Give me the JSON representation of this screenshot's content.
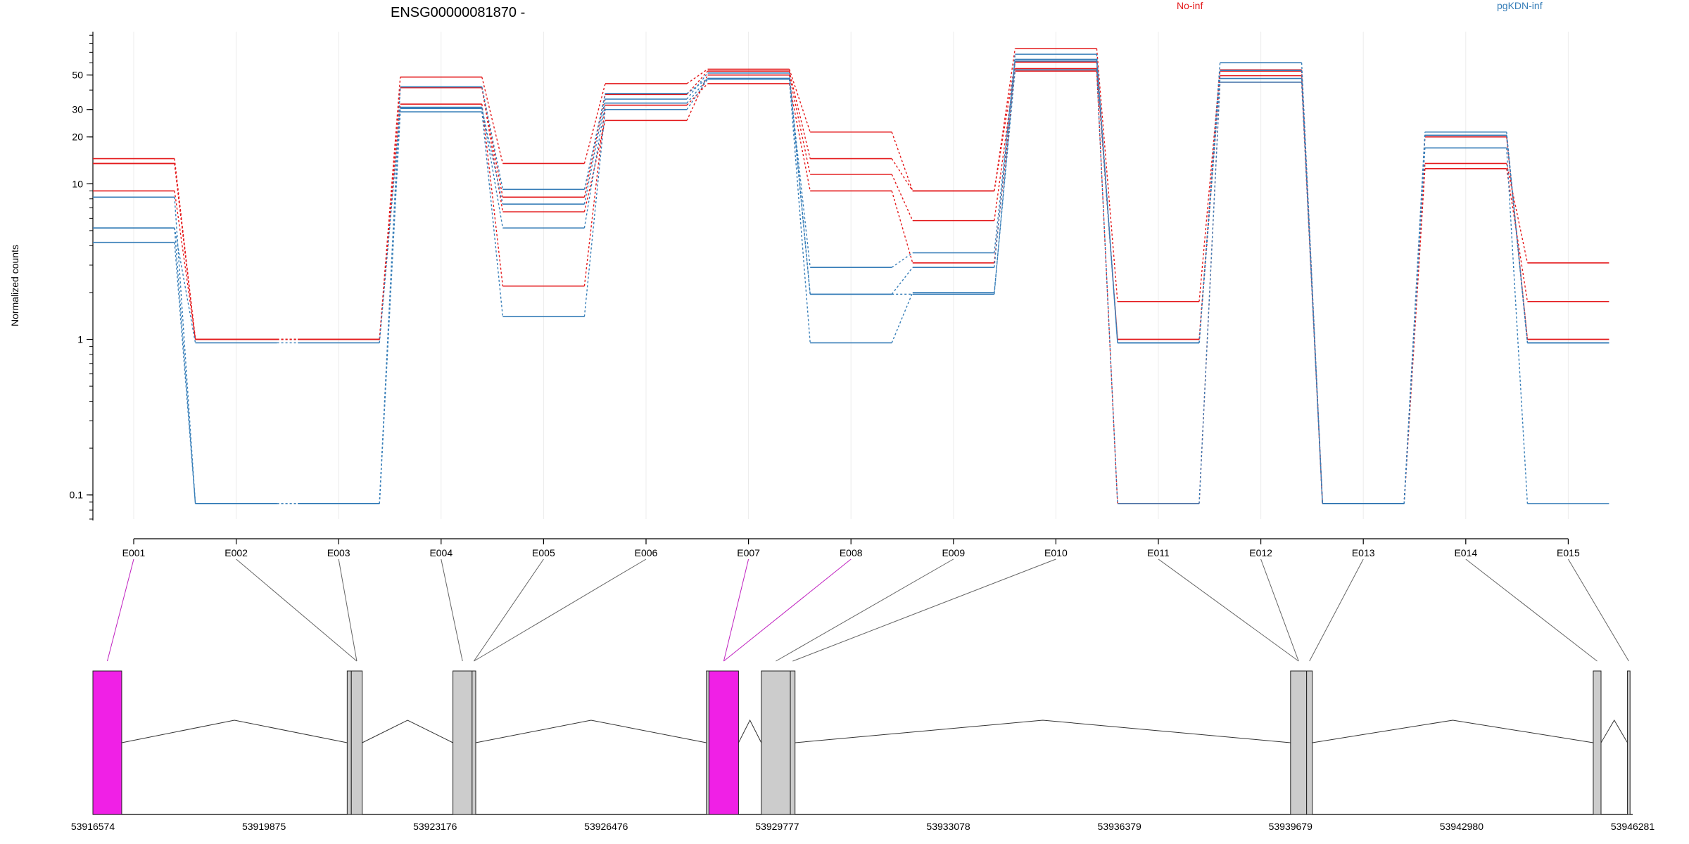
{
  "chart_data": {
    "type": "line",
    "title": "ENSG00000081870 -",
    "ylabel": "Normalized counts",
    "xlabel": "",
    "y_scale": "log",
    "y_tick_labels": [
      "0.1",
      "1",
      "10",
      "20",
      "30",
      "50"
    ],
    "y_tick_values": [
      0.1,
      1,
      10,
      20,
      30,
      50
    ],
    "ylim": [
      0.07,
      95
    ],
    "grid": true,
    "categories": [
      "E001",
      "E002",
      "E003",
      "E004",
      "E005",
      "E006",
      "E007",
      "E008",
      "E009",
      "E010",
      "E011",
      "E012",
      "E013",
      "E014",
      "E015"
    ],
    "legend": [
      {
        "label": "No-inf",
        "color": "#e41a1c"
      },
      {
        "label": "pgKDN-inf",
        "color": "#377eb8"
      }
    ],
    "series": [
      {
        "group": "No-inf",
        "color": "#e41a1c",
        "values": [
          14.5,
          1.0,
          1.0,
          48.5,
          13.5,
          44.0,
          54.5,
          21.5,
          9.0,
          74.0,
          1.75,
          54.0,
          0.088,
          13.5,
          3.1
        ]
      },
      {
        "group": "No-inf",
        "color": "#e41a1c",
        "values": [
          13.5,
          1.0,
          1.0,
          41.5,
          8.2,
          37.5,
          53.0,
          14.5,
          9.0,
          60.5,
          1.0,
          53.0,
          0.088,
          12.5,
          1.75
        ]
      },
      {
        "group": "No-inf",
        "color": "#e41a1c",
        "values": [
          9.0,
          1.0,
          1.0,
          32.5,
          2.2,
          32.0,
          44.0,
          9.0,
          3.1,
          53.0,
          0.088,
          45.0,
          0.088,
          20.0,
          1.0
        ]
      },
      {
        "group": "No-inf",
        "color": "#e41a1c",
        "values": [
          13.5,
          1.0,
          1.0,
          41.5,
          6.6,
          25.5,
          50.0,
          11.5,
          5.8,
          55.0,
          1.0,
          49.5,
          0.088,
          20.5,
          1.0
        ]
      },
      {
        "group": "pgKDN-inf",
        "color": "#377eb8",
        "values": [
          8.2,
          0.088,
          0.088,
          42.0,
          9.2,
          38.0,
          47.5,
          2.9,
          3.6,
          63.0,
          0.95,
          60.0,
          0.088,
          21.5,
          0.95
        ]
      },
      {
        "group": "pgKDN-inf",
        "color": "#377eb8",
        "values": [
          5.2,
          0.95,
          0.95,
          30.5,
          7.4,
          35.0,
          51.5,
          1.95,
          2.9,
          68.0,
          0.95,
          47.5,
          0.088,
          20.5,
          0.95
        ]
      },
      {
        "group": "pgKDN-inf",
        "color": "#377eb8",
        "values": [
          4.2,
          0.088,
          0.088,
          29.0,
          1.4,
          30.0,
          47.0,
          0.95,
          2.0,
          54.0,
          0.088,
          45.0,
          0.088,
          17.0,
          0.088
        ]
      },
      {
        "group": "pgKDN-inf",
        "color": "#377eb8",
        "values": [
          5.2,
          0.088,
          0.088,
          31.0,
          5.2,
          33.0,
          47.5,
          1.95,
          1.95,
          61.5,
          0.95,
          53.5,
          0.088,
          20.5,
          0.95
        ]
      }
    ],
    "gene_model": {
      "coordinate_labels": [
        "53916574",
        "53919875",
        "53923176",
        "53926476",
        "53929777",
        "53933078",
        "53936379",
        "53939679",
        "53942980",
        "53946281"
      ],
      "coordinate_values": [
        53916574,
        53919875,
        53923176,
        53926476,
        53929777,
        53933078,
        53936379,
        53939679,
        53942980,
        53946281
      ],
      "exon_parts": [
        {
          "exon": "E001",
          "start": 53916574,
          "end": 53917130,
          "highlight": true
        },
        {
          "exon": "E002",
          "start": 53921480,
          "end": 53921560,
          "highlight": false
        },
        {
          "exon": "E003",
          "start": 53921560,
          "end": 53921770,
          "highlight": false
        },
        {
          "exon": "E004",
          "start": 53923520,
          "end": 53923890,
          "highlight": false
        },
        {
          "exon": "E005",
          "start": 53923890,
          "end": 53923960,
          "highlight": false
        },
        {
          "exon": "E006",
          "start": 53928410,
          "end": 53928460,
          "highlight": false
        },
        {
          "exon": "E007",
          "start": 53928460,
          "end": 53929030,
          "highlight": true
        },
        {
          "exon": "E008",
          "start": 53929470,
          "end": 53930030,
          "highlight": false
        },
        {
          "exon": "E009",
          "start": 53930030,
          "end": 53930120,
          "highlight": false
        },
        {
          "exon": "E010",
          "start": 53939680,
          "end": 53939990,
          "highlight": false
        },
        {
          "exon": "E011",
          "start": 53939990,
          "end": 53940100,
          "highlight": false
        },
        {
          "exon": "E012",
          "start": 53945520,
          "end": 53945670,
          "highlight": false
        },
        {
          "exon": "E013",
          "start": 53946180,
          "end": 53946230,
          "highlight": false
        }
      ],
      "exon_to_part": [
        0,
        2,
        2,
        3,
        4,
        4,
        6,
        6,
        7,
        8,
        9,
        9,
        10,
        11,
        12
      ],
      "highlight_color": "#f020e6",
      "exon_color": "#cccccc"
    }
  }
}
